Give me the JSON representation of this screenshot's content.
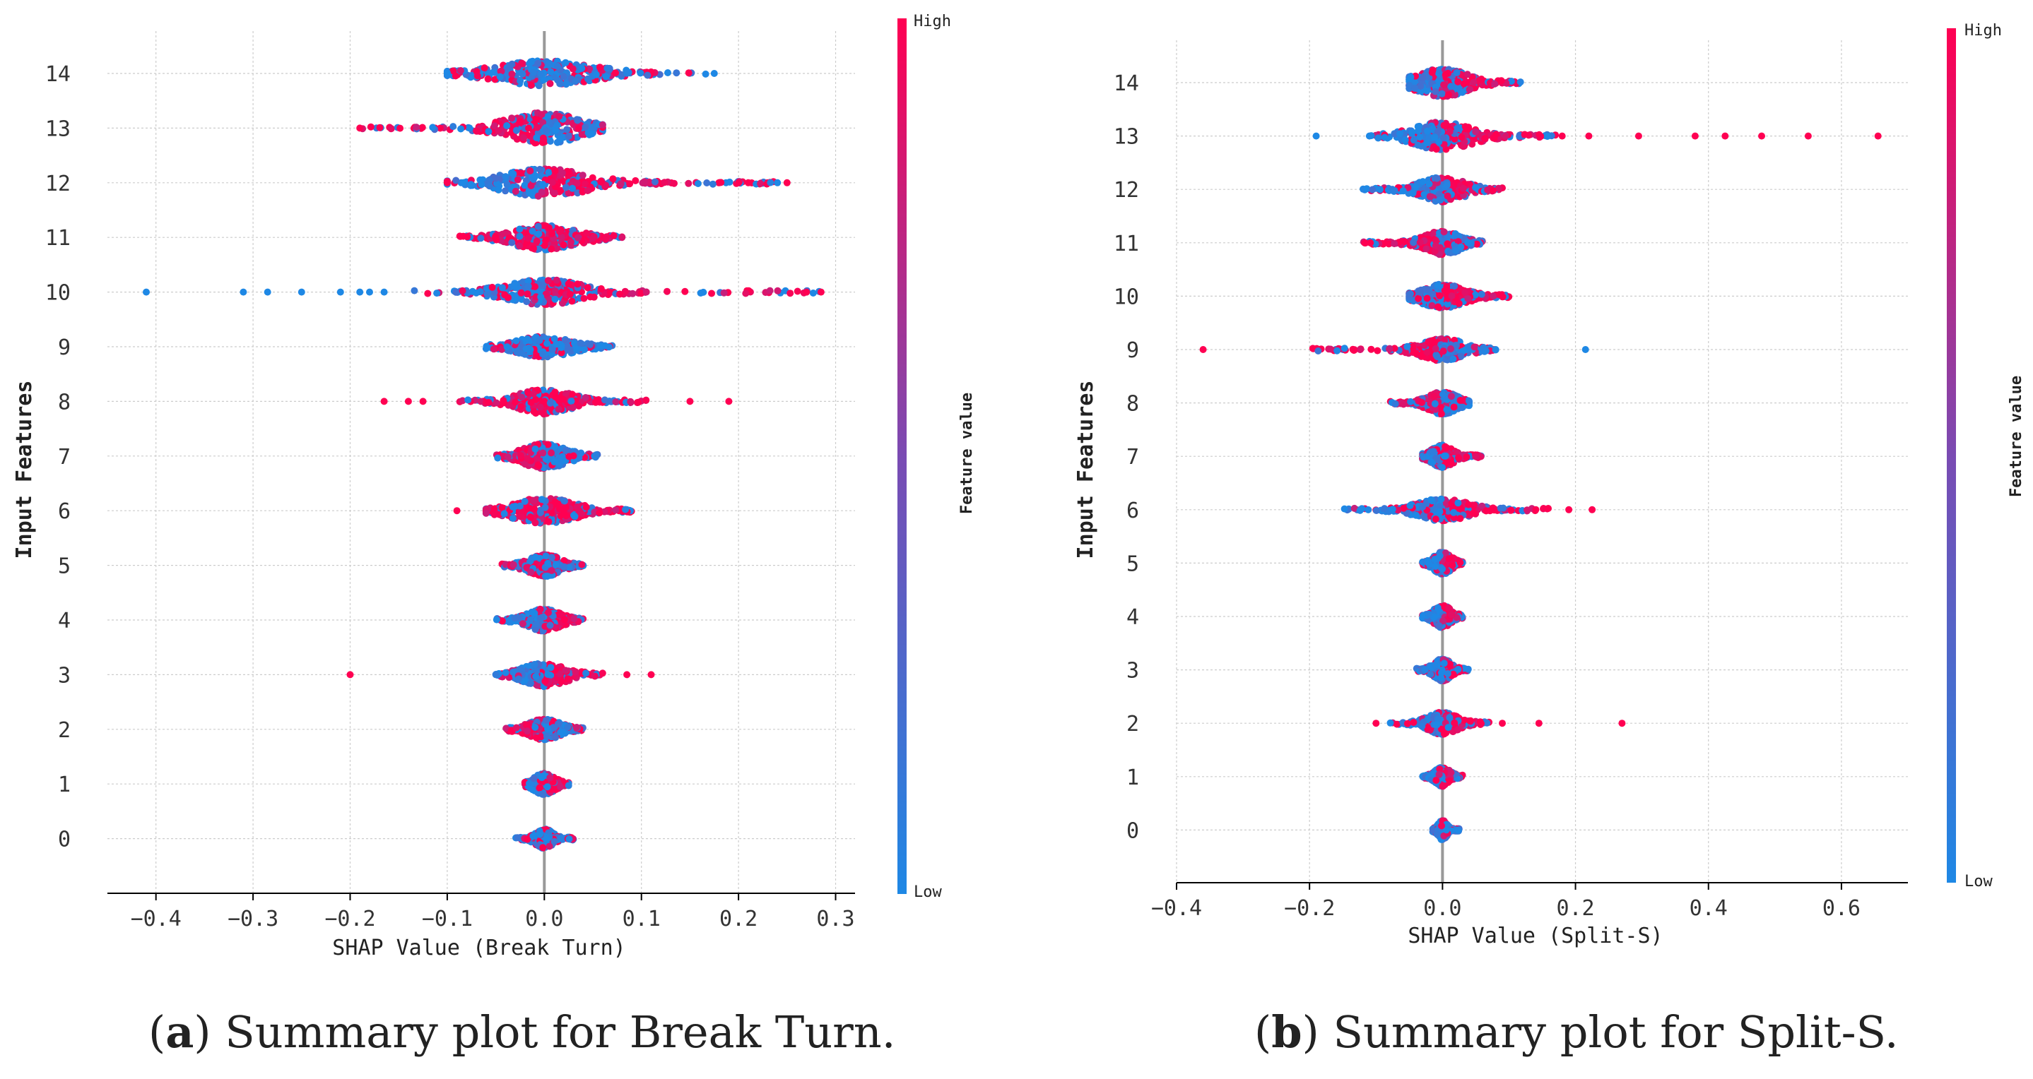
{
  "chart_data": [
    {
      "type": "scatter",
      "subtype": "shap-beeswarm",
      "id": "a",
      "xlabel": "SHAP Value (Break Turn)",
      "ylabel": "Input Features",
      "xlim": [
        -0.45,
        0.32
      ],
      "xticks": [
        -0.4,
        -0.3,
        -0.2,
        -0.1,
        0.0,
        0.1,
        0.2,
        0.3
      ],
      "xtick_labels": [
        "−0.4",
        "−0.3",
        "−0.2",
        "−0.1",
        "0.0",
        "0.1",
        "0.2",
        "0.3"
      ],
      "features": [
        {
          "label": "14",
          "min": -0.1,
          "max": 0.17,
          "spread": 0.045,
          "width": 16,
          "left_color": "low",
          "right_color": "low",
          "outliers": [
            [
              -0.1,
              "low"
            ],
            [
              0.175,
              "low"
            ]
          ]
        },
        {
          "label": "13",
          "min": -0.19,
          "max": 0.06,
          "spread": 0.035,
          "width": 20,
          "left_color": "high",
          "right_color": "low",
          "outliers": [
            [
              -0.19,
              "high"
            ]
          ]
        },
        {
          "label": "12",
          "min": -0.1,
          "max": 0.25,
          "spread": 0.04,
          "width": 18,
          "left_color": "low",
          "right_color": "high",
          "outliers": [
            [
              -0.1,
              "high"
            ],
            [
              0.25,
              "high"
            ],
            [
              0.21,
              "high"
            ],
            [
              0.2,
              "high"
            ]
          ]
        },
        {
          "label": "11",
          "min": -0.09,
          "max": 0.08,
          "spread": 0.03,
          "width": 16,
          "left_color": "high",
          "right_color": "high",
          "outliers": []
        },
        {
          "label": "10",
          "min": -0.14,
          "max": 0.29,
          "spread": 0.035,
          "width": 16,
          "left_color": "low",
          "right_color": "high",
          "outliers": [
            [
              -0.41,
              "low"
            ],
            [
              -0.31,
              "low"
            ],
            [
              -0.285,
              "low"
            ],
            [
              -0.25,
              "low"
            ],
            [
              -0.21,
              "low"
            ],
            [
              -0.19,
              "low"
            ],
            [
              -0.18,
              "low"
            ],
            [
              -0.165,
              "low"
            ],
            [
              0.27,
              "high"
            ],
            [
              0.285,
              "high"
            ]
          ]
        },
        {
          "label": "9",
          "min": -0.06,
          "max": 0.07,
          "spread": 0.025,
          "width": 13,
          "left_color": "low",
          "right_color": "low",
          "outliers": []
        },
        {
          "label": "8",
          "min": -0.09,
          "max": 0.11,
          "spread": 0.025,
          "width": 16,
          "left_color": "high",
          "right_color": "high",
          "outliers": [
            [
              -0.165,
              "high"
            ],
            [
              -0.14,
              "high"
            ],
            [
              -0.125,
              "high"
            ],
            [
              0.15,
              "high"
            ],
            [
              0.19,
              "high"
            ]
          ]
        },
        {
          "label": "7",
          "min": -0.05,
          "max": 0.055,
          "spread": 0.02,
          "width": 16,
          "left_color": "high",
          "right_color": "low",
          "outliers": []
        },
        {
          "label": "6",
          "min": -0.06,
          "max": 0.09,
          "spread": 0.03,
          "width": 16,
          "left_color": "high",
          "right_color": "high",
          "outliers": [
            [
              -0.09,
              "high"
            ]
          ]
        },
        {
          "label": "5",
          "min": -0.045,
          "max": 0.04,
          "spread": 0.015,
          "width": 14,
          "left_color": "high",
          "right_color": "low",
          "outliers": []
        },
        {
          "label": "4",
          "min": -0.05,
          "max": 0.04,
          "spread": 0.015,
          "width": 14,
          "left_color": "low",
          "right_color": "high",
          "outliers": []
        },
        {
          "label": "3",
          "min": -0.05,
          "max": 0.06,
          "spread": 0.02,
          "width": 15,
          "left_color": "low",
          "right_color": "high",
          "outliers": [
            [
              -0.2,
              "high"
            ],
            [
              0.085,
              "high"
            ],
            [
              0.11,
              "high"
            ]
          ]
        },
        {
          "label": "2",
          "min": -0.04,
          "max": 0.04,
          "spread": 0.015,
          "width": 13,
          "left_color": "high",
          "right_color": "low",
          "outliers": []
        },
        {
          "label": "1",
          "min": -0.02,
          "max": 0.025,
          "spread": 0.01,
          "width": 13,
          "left_color": "low",
          "right_color": "high",
          "outliers": []
        },
        {
          "label": "0",
          "min": -0.03,
          "max": 0.03,
          "spread": 0.008,
          "width": 12,
          "left_color": "low",
          "right_color": "low",
          "outliers": []
        }
      ],
      "colorbar": {
        "label": "Feature value",
        "high": "High",
        "low": "Low"
      }
    },
    {
      "type": "scatter",
      "subtype": "shap-beeswarm",
      "id": "b",
      "xlabel": "SHAP Value (Split-S)",
      "ylabel": "Input Features",
      "xlim": [
        -0.4,
        0.7
      ],
      "xticks": [
        -0.4,
        -0.2,
        0.0,
        0.2,
        0.4,
        0.6
      ],
      "xtick_labels": [
        "−0.4",
        "−0.2",
        "0.0",
        "0.2",
        "0.4",
        "0.6"
      ],
      "features": [
        {
          "label": "14",
          "min": -0.05,
          "max": 0.12,
          "spread": 0.035,
          "width": 18,
          "left_color": "low",
          "right_color": "high",
          "outliers": []
        },
        {
          "label": "13",
          "min": -0.11,
          "max": 0.17,
          "spread": 0.04,
          "width": 18,
          "left_color": "low",
          "right_color": "high",
          "outliers": [
            [
              -0.19,
              "low"
            ],
            [
              -0.11,
              "low"
            ],
            [
              0.18,
              "high"
            ],
            [
              0.22,
              "high"
            ],
            [
              0.295,
              "high"
            ],
            [
              0.38,
              "high"
            ],
            [
              0.425,
              "high"
            ],
            [
              0.48,
              "high"
            ],
            [
              0.55,
              "high"
            ],
            [
              0.655,
              "high"
            ]
          ]
        },
        {
          "label": "12",
          "min": -0.12,
          "max": 0.09,
          "spread": 0.03,
          "width": 16,
          "left_color": "low",
          "right_color": "high",
          "outliers": []
        },
        {
          "label": "11",
          "min": -0.12,
          "max": 0.06,
          "spread": 0.025,
          "width": 15,
          "left_color": "high",
          "right_color": "low",
          "outliers": []
        },
        {
          "label": "10",
          "min": -0.05,
          "max": 0.1,
          "spread": 0.03,
          "width": 15,
          "left_color": "low",
          "right_color": "high",
          "outliers": []
        },
        {
          "label": "9",
          "min": -0.2,
          "max": 0.08,
          "spread": 0.03,
          "width": 14,
          "left_color": "high",
          "right_color": "low",
          "outliers": [
            [
              -0.36,
              "high"
            ],
            [
              0.215,
              "low"
            ]
          ]
        },
        {
          "label": "8",
          "min": -0.08,
          "max": 0.04,
          "spread": 0.02,
          "width": 14,
          "left_color": "high",
          "right_color": "low",
          "outliers": []
        },
        {
          "label": "7",
          "min": -0.03,
          "max": 0.06,
          "spread": 0.015,
          "width": 14,
          "left_color": "low",
          "right_color": "high",
          "outliers": []
        },
        {
          "label": "6",
          "min": -0.15,
          "max": 0.16,
          "spread": 0.035,
          "width": 14,
          "left_color": "low",
          "right_color": "high",
          "outliers": [
            [
              0.19,
              "high"
            ],
            [
              0.225,
              "high"
            ]
          ]
        },
        {
          "label": "5",
          "min": -0.03,
          "max": 0.03,
          "spread": 0.012,
          "width": 14,
          "left_color": "low",
          "right_color": "high",
          "outliers": []
        },
        {
          "label": "4",
          "min": -0.03,
          "max": 0.03,
          "spread": 0.012,
          "width": 14,
          "left_color": "low",
          "right_color": "high",
          "outliers": []
        },
        {
          "label": "3",
          "min": -0.04,
          "max": 0.04,
          "spread": 0.012,
          "width": 14,
          "left_color": "low",
          "right_color": "high",
          "outliers": []
        },
        {
          "label": "2",
          "min": -0.08,
          "max": 0.07,
          "spread": 0.02,
          "width": 14,
          "left_color": "low",
          "right_color": "high",
          "outliers": [
            [
              -0.1,
              "high"
            ],
            [
              0.09,
              "high"
            ],
            [
              0.145,
              "high"
            ],
            [
              0.27,
              "high"
            ]
          ]
        },
        {
          "label": "1",
          "min": -0.03,
          "max": 0.03,
          "spread": 0.01,
          "width": 12,
          "left_color": "low",
          "right_color": "high",
          "outliers": []
        },
        {
          "label": "0",
          "min": -0.015,
          "max": 0.025,
          "spread": 0.006,
          "width": 12,
          "left_color": "low",
          "right_color": "low",
          "outliers": []
        }
      ],
      "colorbar": {
        "label": "Feature value",
        "high": "High",
        "low": "Low"
      }
    }
  ],
  "colors": {
    "high": "#ff0052",
    "mid": "#7a4bb3",
    "low": "#1e88e5",
    "grid": "#cccccc",
    "zero_line": "#999999"
  },
  "captions": {
    "a": {
      "letter": "a",
      "text": " Summary plot for Break Turn."
    },
    "b": {
      "letter": "b",
      "text": " Summary plot for Split-S."
    }
  }
}
